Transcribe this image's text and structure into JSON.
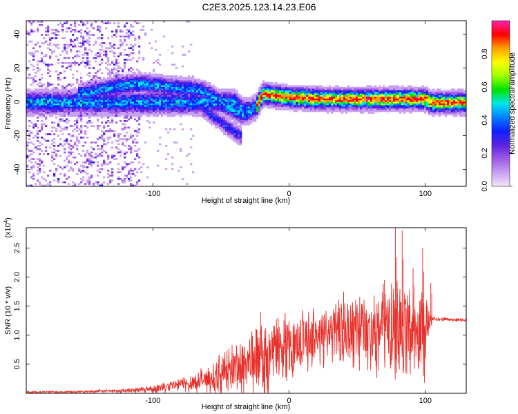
{
  "page_title": "C2E3.2025.123.14.23.E06",
  "chart_data": [
    {
      "type": "heatmap",
      "xlabel": "Height of straight line (km)",
      "ylabel": "Frequency (Hz)",
      "xlim": [
        -193,
        130
      ],
      "ylim": [
        -50,
        48
      ],
      "xticks": [
        -100,
        0,
        100
      ],
      "yticks": [
        -40,
        -20,
        0,
        20,
        40
      ],
      "colorbar": {
        "label": "Normalized spectral amplitude",
        "range": [
          0,
          1
        ],
        "ticks": [
          0.0,
          0.2,
          0.4,
          0.6,
          0.8
        ],
        "colors": [
          "#f3e6fb",
          "#c8a0f0",
          "#9c5ae6",
          "#5a22e0",
          "#1020ff",
          "#0080ff",
          "#00e8e8",
          "#00e000",
          "#a0ff00",
          "#ffff00",
          "#ffa000",
          "#ff0000",
          "#ff20b0"
        ]
      },
      "ridge": {
        "x": [
          -190,
          -160,
          -130,
          -110,
          -90,
          -75,
          -60,
          -50,
          -45,
          -40,
          -35,
          -30,
          -25,
          -20,
          0,
          30,
          60,
          90,
          100,
          103,
          130
        ],
        "f": [
          0,
          0,
          0,
          0,
          0,
          0,
          0,
          0,
          0,
          0,
          -5,
          -5,
          -3,
          5,
          3,
          2,
          2,
          2,
          2,
          0,
          0
        ]
      },
      "upper_branch": {
        "x": [
          -155,
          -140,
          -125,
          -110,
          -95,
          -85,
          -75,
          -65,
          -55,
          -45,
          -40,
          -35,
          -30
        ],
        "f": [
          5,
          7,
          10,
          11,
          10,
          9,
          8,
          7,
          3,
          -3,
          -5,
          -7,
          -6
        ]
      },
      "lower_branch": {
        "x": [
          -65,
          -60,
          -55,
          -50,
          -45,
          -40,
          -35
        ],
        "f": [
          -3,
          -6,
          -9,
          -12,
          -15,
          -18,
          -20
        ]
      }
    },
    {
      "type": "line",
      "xlabel": "Height of straight line (km)",
      "ylabel": "SNR (10 * v/v)",
      "y_multiplier": "(x10",
      "y_multiplier_exp": "4",
      "y_multiplier_close": ")",
      "xlim": [
        -193,
        130
      ],
      "ylim": [
        0,
        2.85
      ],
      "xticks": [
        -100,
        0,
        100
      ],
      "yticks": [
        0.5,
        1.0,
        1.5,
        2.0,
        2.5
      ],
      "color": "#e8302a",
      "envelope": {
        "x": [
          -193,
          -150,
          -120,
          -100,
          -80,
          -60,
          -50,
          -40,
          -30,
          -20,
          -10,
          0,
          10,
          20,
          30,
          40,
          50,
          60,
          70,
          80,
          90,
          100,
          105,
          110,
          120,
          130
        ],
        "base": [
          0.02,
          0.03,
          0.05,
          0.08,
          0.15,
          0.25,
          0.35,
          0.45,
          0.55,
          0.65,
          0.75,
          0.85,
          0.95,
          1.0,
          1.05,
          1.1,
          1.15,
          1.15,
          1.15,
          1.15,
          1.15,
          1.15,
          1.3,
          1.28,
          1.27,
          1.26
        ],
        "spread": [
          0.02,
          0.02,
          0.04,
          0.08,
          0.15,
          0.25,
          0.4,
          0.55,
          0.7,
          0.7,
          0.65,
          0.6,
          0.55,
          0.6,
          0.6,
          0.65,
          0.7,
          0.8,
          0.9,
          0.95,
          0.8,
          0.9,
          0.05,
          0.04,
          0.04,
          0.04
        ]
      },
      "spikes": [
        {
          "x": -21,
          "y": 1.4
        },
        {
          "x": -8,
          "y": 1.3
        },
        {
          "x": 40,
          "y": 1.75
        },
        {
          "x": 70,
          "y": 1.95
        },
        {
          "x": 78,
          "y": 2.85
        },
        {
          "x": 83,
          "y": 2.8
        },
        {
          "x": 91,
          "y": 2.15
        },
        {
          "x": 98,
          "y": 2.5
        },
        {
          "x": 104,
          "y": 1.9
        }
      ]
    }
  ]
}
